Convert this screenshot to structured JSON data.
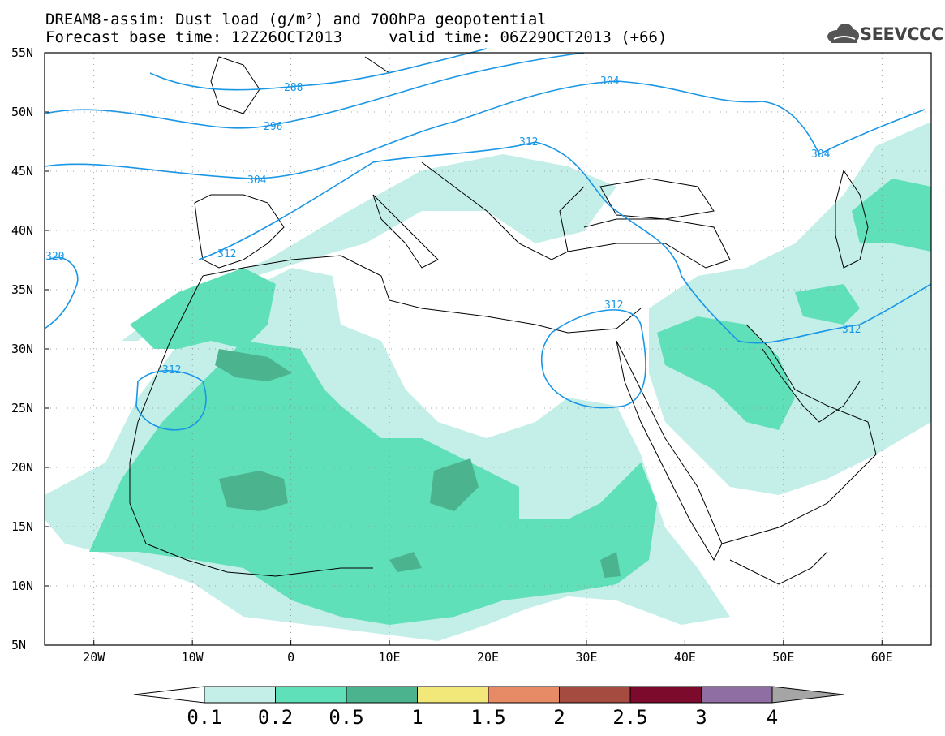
{
  "title": {
    "line1": "DREAM8-assim: Dust load (g/m²) and 700hPa geopotential",
    "line2": "Forecast base time: 12Z26OCT2013     valid time: 06Z29OCT2013 (+66)"
  },
  "logo": {
    "text": "SEEVCCC",
    "icon": "cloud-icon"
  },
  "map": {
    "lat_labels": [
      "55N",
      "50N",
      "45N",
      "40N",
      "35N",
      "30N",
      "25N",
      "20N",
      "15N",
      "10N",
      "5N"
    ],
    "lon_labels": [
      "20W",
      "10W",
      "0",
      "10E",
      "20E",
      "30E",
      "40E",
      "50E",
      "60E"
    ],
    "lon_range": [
      -25,
      65
    ],
    "lat_range": [
      5,
      55
    ],
    "contour_labels": [
      "288",
      "296",
      "304",
      "312",
      "320",
      "304",
      "304",
      "312",
      "312",
      "312"
    ]
  },
  "colorbar": {
    "labels": [
      "0.1",
      "0.2",
      "0.5",
      "1",
      "1.5",
      "2",
      "2.5",
      "3",
      "4"
    ],
    "colors": [
      "#c3efe8",
      "#5fe0b8",
      "#4cb38f",
      "#f1e879",
      "#e78a66",
      "#a64b40",
      "#7b0a2c",
      "#8e6ea3",
      "#a5a5a5"
    ]
  }
}
